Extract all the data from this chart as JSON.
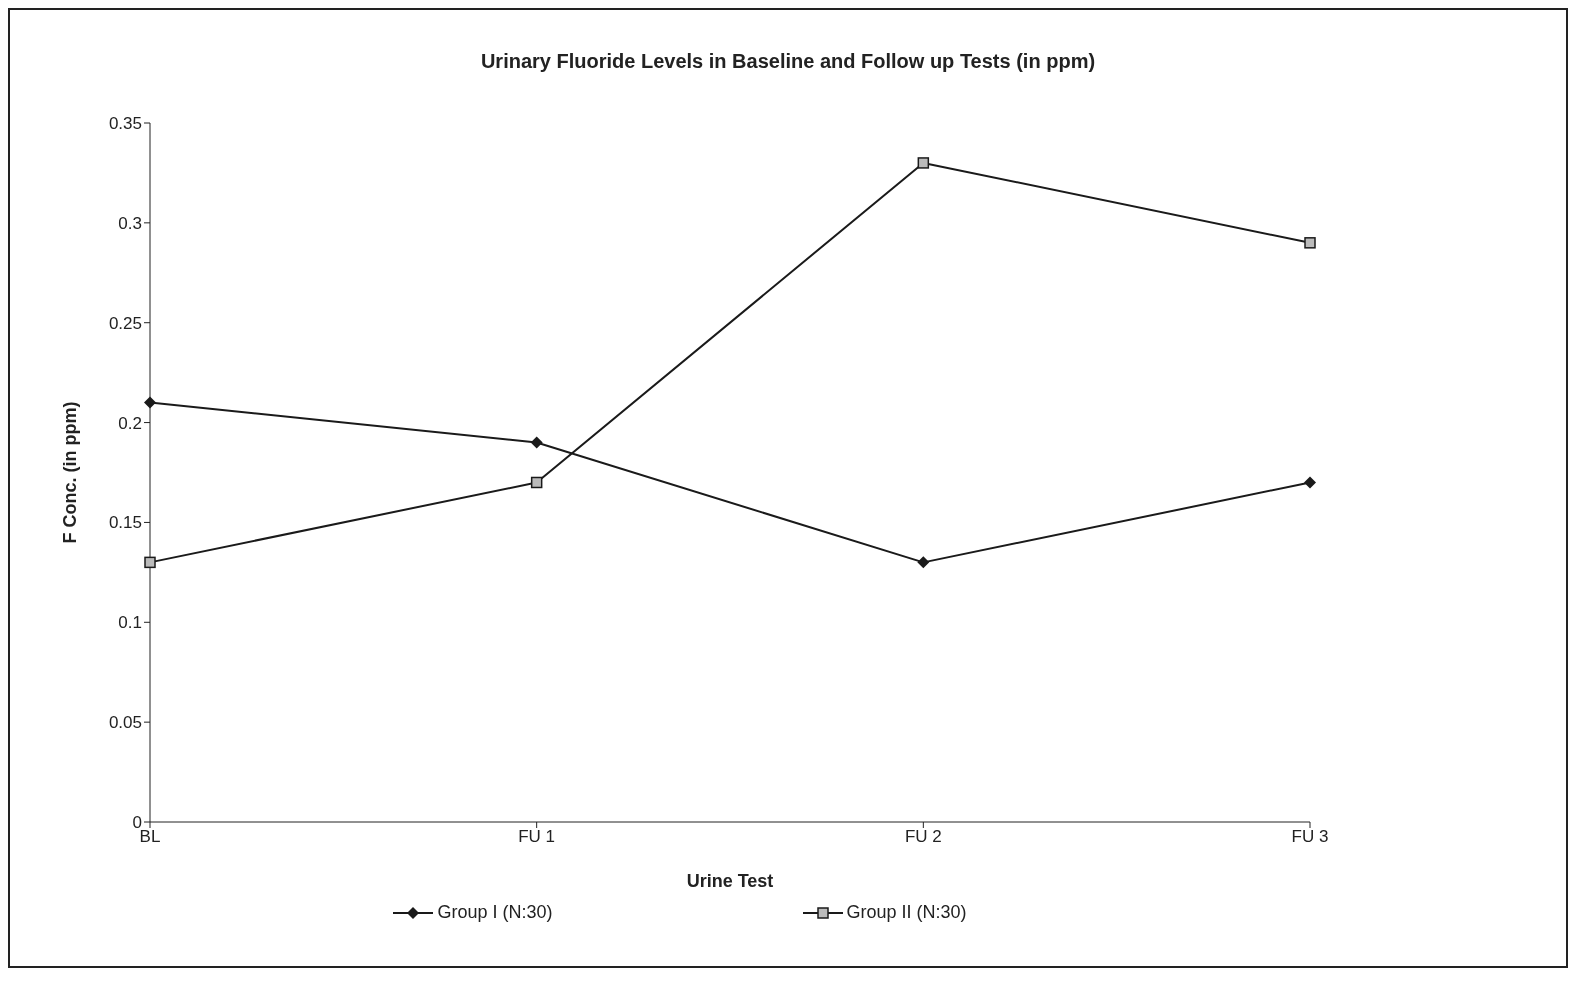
{
  "chart_data": {
    "type": "line",
    "title": "Urinary Fluoride Levels  in Baseline and Follow up Tests (in ppm)",
    "xlabel": "Urine Test",
    "ylabel": "F Conc. (in ppm)",
    "categories": [
      "BL",
      "FU 1",
      "FU 2",
      "FU 3"
    ],
    "series": [
      {
        "name": "Group I (N:30)",
        "color": "#1a1a1a",
        "marker": "diamond",
        "values": [
          0.21,
          0.19,
          0.13,
          0.17
        ]
      },
      {
        "name": "Group II (N:30)",
        "color": "#1a1a1a",
        "marker": "square",
        "values": [
          0.13,
          0.17,
          0.33,
          0.29
        ]
      }
    ],
    "ylim": [
      0,
      0.35
    ],
    "yticks": [
      0,
      0.05,
      0.1,
      0.15,
      0.2,
      0.25,
      0.3,
      0.35
    ],
    "grid": false,
    "legend": "bottom",
    "line_style": "solid"
  }
}
